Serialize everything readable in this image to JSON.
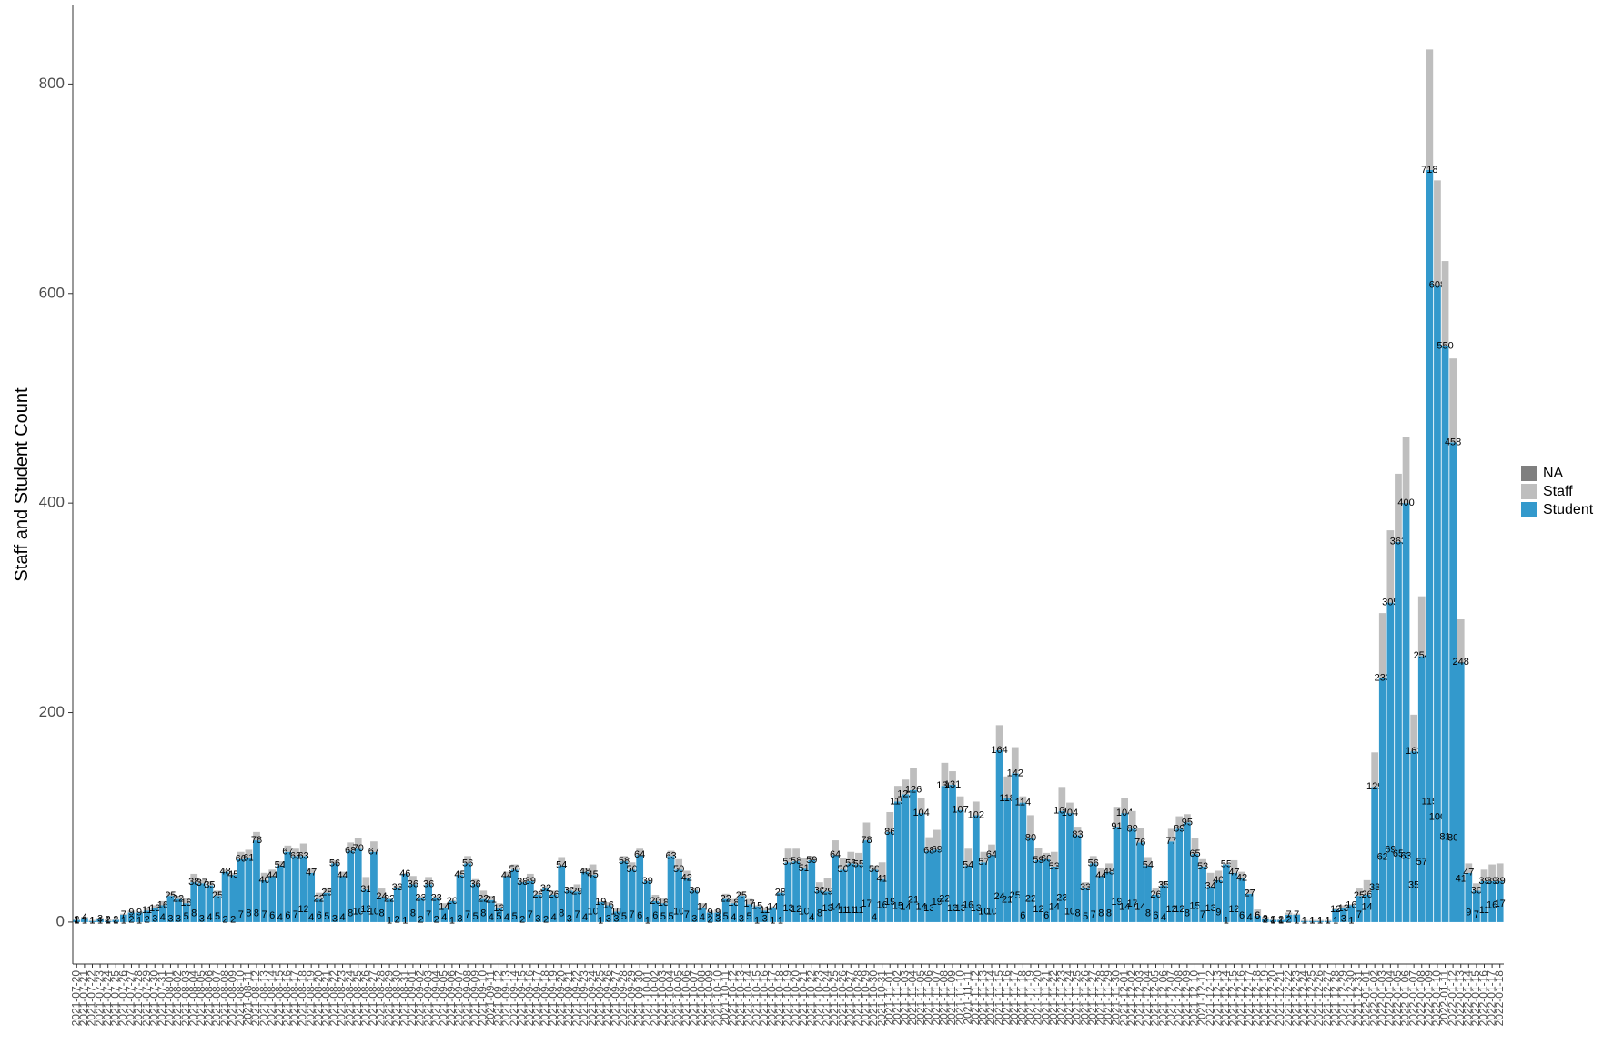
{
  "chart_data": {
    "type": "stacked_bar",
    "y_label": "Staff and Student Count",
    "ylim": [
      -40,
      875
    ],
    "yticks": [
      0,
      200,
      400,
      600,
      800
    ],
    "grid": false,
    "legend": "right",
    "categories": [
      "2021-07-20",
      "2021-07-21",
      "2021-07-22",
      "2021-07-23",
      "2021-07-24",
      "2021-07-25",
      "2021-07-26",
      "2021-07-27",
      "2021-07-28",
      "2021-07-29",
      "2021-07-30",
      "2021-07-31",
      "2021-08-01",
      "2021-08-02",
      "2021-08-03",
      "2021-08-04",
      "2021-08-05",
      "2021-08-06",
      "2021-08-07",
      "2021-08-08",
      "2021-08-09",
      "2021-08-10",
      "2021-08-11",
      "2021-08-12",
      "2021-08-13",
      "2021-08-14",
      "2021-08-15",
      "2021-08-16",
      "2021-08-17",
      "2021-08-18",
      "2021-08-19",
      "2021-08-20",
      "2021-08-21",
      "2021-08-22",
      "2021-08-23",
      "2021-08-24",
      "2021-08-25",
      "2021-08-26",
      "2021-08-27",
      "2021-08-28",
      "2021-08-29",
      "2021-08-30",
      "2021-08-31",
      "2021-09-01",
      "2021-09-02",
      "2021-09-03",
      "2021-09-04",
      "2021-09-05",
      "2021-09-06",
      "2021-09-07",
      "2021-09-08",
      "2021-09-09",
      "2021-09-10",
      "2021-09-11",
      "2021-09-12",
      "2021-09-13",
      "2021-09-14",
      "2021-09-15",
      "2021-09-16",
      "2021-09-17",
      "2021-09-18",
      "2021-09-19",
      "2021-09-20",
      "2021-09-21",
      "2021-09-22",
      "2021-09-23",
      "2021-09-24",
      "2021-09-25",
      "2021-09-26",
      "2021-09-27",
      "2021-09-28",
      "2021-09-29",
      "2021-09-30",
      "2021-10-01",
      "2021-10-02",
      "2021-10-03",
      "2021-10-04",
      "2021-10-05",
      "2021-10-06",
      "2021-10-07",
      "2021-10-08",
      "2021-10-09",
      "2021-10-10",
      "2021-10-11",
      "2021-10-12",
      "2021-10-13",
      "2021-10-14",
      "2021-10-15",
      "2021-10-16",
      "2021-10-17",
      "2021-10-18",
      "2021-10-19",
      "2021-10-20",
      "2021-10-21",
      "2021-10-22",
      "2021-10-23",
      "2021-10-24",
      "2021-10-25",
      "2021-10-26",
      "2021-10-27",
      "2021-10-28",
      "2021-10-29",
      "2021-10-30",
      "2021-10-31",
      "2021-11-01",
      "2021-11-02",
      "2021-11-03",
      "2021-11-04",
      "2021-11-05",
      "2021-11-06",
      "2021-11-07",
      "2021-11-08",
      "2021-11-09",
      "2021-11-10",
      "2021-11-11",
      "2021-11-12",
      "2021-11-13",
      "2021-11-14",
      "2021-11-15",
      "2021-11-16",
      "2021-11-17",
      "2021-11-18",
      "2021-11-19",
      "2021-11-20",
      "2021-11-21",
      "2021-11-22",
      "2021-11-23",
      "2021-11-24",
      "2021-11-25",
      "2021-11-26",
      "2021-11-27",
      "2021-11-28",
      "2021-11-29",
      "2021-11-30",
      "2021-12-01",
      "2021-12-02",
      "2021-12-03",
      "2021-12-04",
      "2021-12-05",
      "2021-12-06",
      "2021-12-07",
      "2021-12-08",
      "2021-12-09",
      "2021-12-10",
      "2021-12-11",
      "2021-12-12",
      "2021-12-13",
      "2021-12-14",
      "2021-12-15",
      "2021-12-16",
      "2021-12-17",
      "2021-12-18",
      "2021-12-19",
      "2021-12-20",
      "2021-12-21",
      "2021-12-22",
      "2021-12-23",
      "2021-12-24",
      "2021-12-25",
      "2021-12-26",
      "2021-12-27",
      "2021-12-28",
      "2021-12-29",
      "2021-12-30",
      "2021-12-31",
      "2022-01-01",
      "2022-01-02",
      "2022-01-03",
      "2022-01-04",
      "2022-01-05",
      "2022-01-06",
      "2022-01-07",
      "2022-01-08",
      "2022-01-09",
      "2022-01-10",
      "2022-01-11",
      "2022-01-12",
      "2022-01-13",
      "2022-01-14",
      "2022-01-15",
      "2022-01-16",
      "2022-01-17",
      "2022-01-18"
    ],
    "series": [
      {
        "name": "NA",
        "color": "#7f7f7f",
        "values": [
          null,
          null,
          null,
          null,
          null,
          null,
          null,
          null,
          null,
          null,
          null,
          null,
          null,
          null,
          null,
          null,
          null,
          null,
          null,
          null,
          null,
          null,
          null,
          null,
          null,
          null,
          null,
          null,
          null,
          null,
          null,
          null,
          null,
          null,
          null,
          null,
          null,
          null,
          null,
          null,
          null,
          null,
          null,
          null,
          null,
          null,
          null,
          null,
          null,
          null,
          null,
          null,
          null,
          null,
          null,
          null,
          null,
          null,
          null,
          null,
          null,
          null,
          null,
          null,
          null,
          null,
          null,
          null,
          null,
          null,
          null,
          null,
          null,
          null,
          null,
          null,
          null,
          null,
          null,
          null,
          null,
          null,
          null,
          null,
          null,
          null,
          null,
          null,
          null,
          null,
          null,
          null,
          null,
          null,
          null,
          null,
          null,
          null,
          null,
          null,
          null,
          null,
          null,
          null,
          null,
          null,
          null,
          null,
          null,
          null,
          null,
          null,
          null,
          null,
          null,
          null,
          null,
          null,
          null,
          null,
          null,
          null,
          null,
          null,
          null,
          null,
          null,
          null,
          null,
          null,
          null,
          null,
          null,
          null,
          null,
          null,
          null,
          null,
          null,
          null,
          null,
          null,
          null,
          null,
          null,
          null,
          null,
          null,
          null,
          null,
          null,
          null,
          null,
          null,
          null,
          null,
          null,
          null,
          null,
          null,
          null,
          null,
          null,
          null,
          null,
          null,
          null,
          null,
          null,
          null,
          null,
          null,
          null,
          null,
          null,
          null,
          null,
          null,
          null,
          null,
          null,
          null,
          null
        ]
      },
      {
        "name": "Staff",
        "color": "#bebebe",
        "values": [
          1,
          1,
          1,
          1,
          2,
          1,
          1,
          2,
          1,
          2,
          3,
          4,
          3,
          3,
          5,
          8,
          3,
          4,
          5,
          2,
          2,
          7,
          8,
          8,
          7,
          6,
          4,
          6,
          7,
          12,
          4,
          6,
          5,
          3,
          4,
          8,
          10,
          12,
          10,
          8,
          1,
          2,
          1,
          8,
          2,
          7,
          2,
          4,
          1,
          3,
          7,
          5,
          8,
          4,
          5,
          4,
          5,
          2,
          7,
          3,
          2,
          4,
          8,
          3,
          7,
          4,
          10,
          1,
          3,
          3,
          5,
          7,
          6,
          1,
          6,
          5,
          5,
          10,
          7,
          3,
          4,
          2,
          3,
          5,
          4,
          3,
          5,
          1,
          3,
          1,
          1,
          13,
          12,
          10,
          4,
          8,
          13,
          14,
          11,
          11,
          11,
          17,
          4,
          16,
          19,
          15,
          14,
          21,
          14,
          13,
          19,
          22,
          13,
          13,
          16,
          13,
          10,
          10,
          24,
          21,
          25,
          6,
          22,
          12,
          6,
          14,
          23,
          10,
          8,
          5,
          7,
          8,
          8,
          19,
          14,
          17,
          14,
          8,
          6,
          4,
          12,
          12,
          8,
          15,
          7,
          13,
          9,
          1,
          12,
          6,
          4,
          6,
          2,
          1,
          1,
          2,
          1,
          1,
          1,
          1,
          1,
          1,
          3,
          1,
          7,
          14,
          33,
          62,
          69,
          65,
          63,
          35,
          57,
          115,
          100,
          81,
          80,
          41,
          9,
          7,
          11,
          16,
          17
        ]
      },
      {
        "name": "Student",
        "color": "#3399cc",
        "values": [
          2,
          4,
          1,
          3,
          1,
          2,
          7,
          9,
          9,
          11,
          13,
          16,
          25,
          22,
          18,
          38,
          37,
          35,
          25,
          48,
          45,
          60,
          61,
          78,
          40,
          44,
          54,
          67,
          63,
          63,
          47,
          22,
          28,
          56,
          44,
          68,
          70,
          31,
          67,
          24,
          22,
          33,
          46,
          36,
          23,
          36,
          23,
          14,
          20,
          45,
          56,
          36,
          22,
          21,
          13,
          44,
          50,
          38,
          39,
          26,
          32,
          26,
          54,
          30,
          29,
          48,
          45,
          19,
          16,
          10,
          58,
          50,
          64,
          39,
          20,
          18,
          63,
          50,
          42,
          30,
          14,
          9,
          9,
          22,
          18,
          25,
          17,
          15,
          11,
          14,
          28,
          57,
          58,
          51,
          59,
          30,
          29,
          64,
          50,
          56,
          55,
          78,
          50,
          41,
          86,
          115,
          122,
          126,
          104,
          68,
          69,
          130,
          131,
          107,
          54,
          102,
          57,
          64,
          164,
          118,
          142,
          114,
          80,
          59,
          60,
          53,
          106,
          104,
          83,
          33,
          56,
          44,
          48,
          91,
          104,
          89,
          76,
          54,
          26,
          35,
          77,
          89,
          95,
          65,
          53,
          34,
          40,
          55,
          47,
          42,
          27,
          6,
          3,
          2,
          2,
          7,
          7,
          1,
          1,
          1,
          1,
          12,
          13,
          16,
          25,
          26,
          129,
          233,
          305,
          363,
          400,
          163,
          254,
          718,
          608,
          550,
          458,
          248,
          47,
          30,
          39,
          39,
          39
        ]
      }
    ]
  }
}
